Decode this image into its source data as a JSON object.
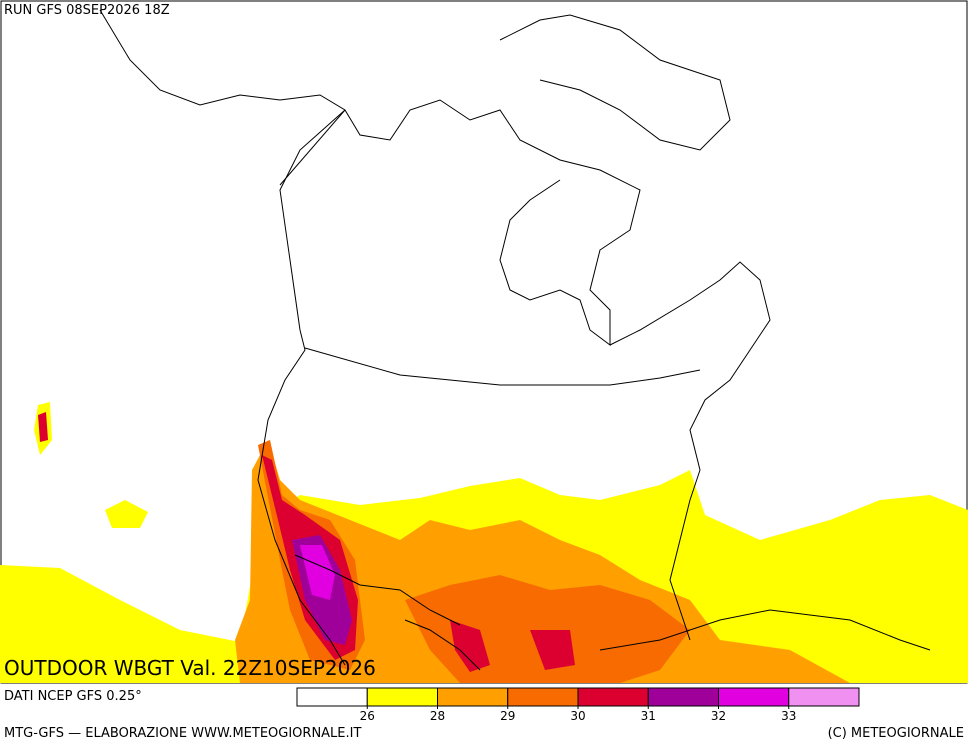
{
  "header": {
    "run": "RUN GFS 08SEP2026 18Z"
  },
  "map": {
    "caption": "OUTDOOR WBGT Val. 22Z10SEP2026"
  },
  "footer": {
    "source": "DATI NCEP GFS 0.25°",
    "credits": "MTG-GFS — ELABORAZIONE WWW.METEOGIORNALE.IT",
    "copyright": "(C) METEOGIORNALE"
  },
  "legend": {
    "colors": [
      "#ffffff",
      "#ffff00",
      "#ffa000",
      "#f76b00",
      "#dc0030",
      "#a0009a",
      "#e000e0",
      "#f090f0"
    ],
    "ticks": [
      26,
      28,
      29,
      30,
      31,
      32,
      33
    ]
  }
}
